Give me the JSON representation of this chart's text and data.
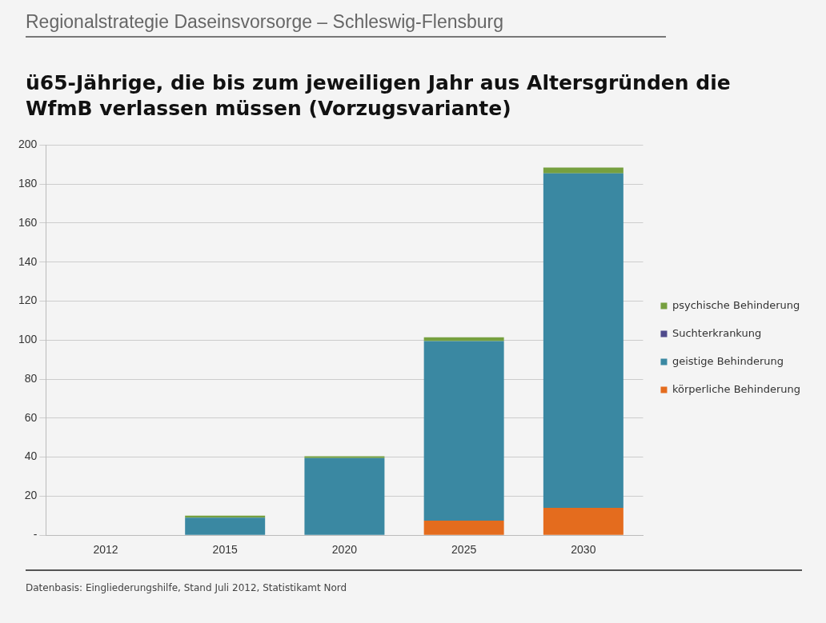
{
  "chart_data": {
    "type": "bar",
    "title": "ü65-Jährige, die bis zum jeweiligen Jahr aus Altersgründen die WfmB verlassen müssen (Vorzugsvariante)",
    "annotations": [
      "Regionalstrategie Daseinsvorsorge – Schleswig-Flensburg",
      "Datenbasis: Eingliederungshilfe, Stand Juli 2012, Statistikamt Nord"
    ],
    "categories": [
      "2012",
      "2015",
      "2020",
      "2025",
      "2030"
    ],
    "stacked": true,
    "series": [
      {
        "name": "körperliche Behinderung",
        "color": "#e46c1e",
        "values": [
          0,
          0,
          0,
          7.5,
          14
        ]
      },
      {
        "name": "geistige Behinderung",
        "color": "#3a88a2",
        "values": [
          0,
          9,
          39.5,
          92,
          171.5
        ]
      },
      {
        "name": "Suchterkrankung",
        "color": "#4f4a8c",
        "values": [
          0,
          0,
          0,
          0,
          0
        ]
      },
      {
        "name": "psychische Behinderung",
        "color": "#76a03f",
        "values": [
          0,
          1,
          1,
          2,
          3
        ]
      }
    ],
    "ylim": [
      0,
      200
    ],
    "yticks": [
      {
        "value": 0,
        "label": "-"
      },
      20,
      40,
      60,
      80,
      100,
      120,
      140,
      160,
      180,
      200
    ],
    "grid": "y",
    "legend": "right"
  }
}
